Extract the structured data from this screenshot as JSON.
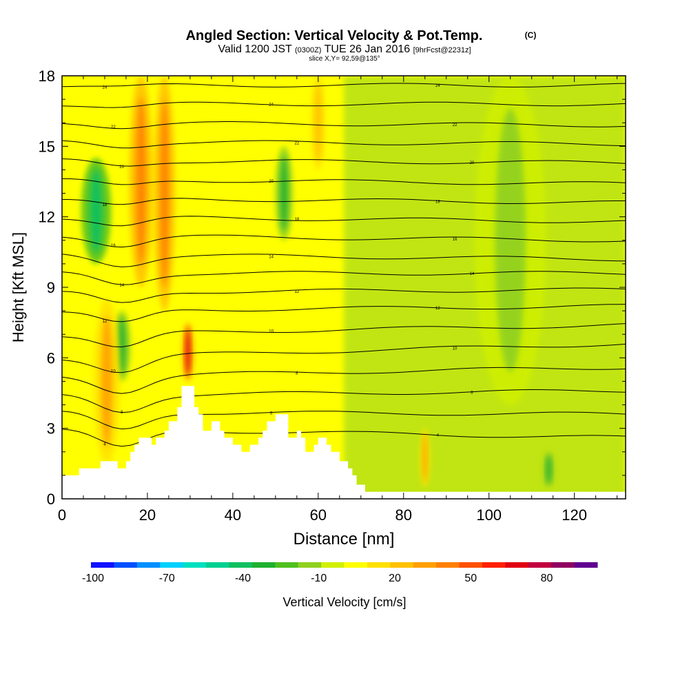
{
  "title": "Angled Section: Vertical Velocity & Pot.Temp.",
  "title_suffix": "(C)",
  "subtitle_left": "Valid 1200 JST",
  "subtitle_utc": "(0300Z)",
  "subtitle_right": "TUE 26 Jan 2016",
  "subtitle_fcst": "[9hrFcst@2231z]",
  "subtitle2": "slice X,Y= 92,59@135°",
  "chart_data": {
    "type": "heatmap",
    "xlabel": "Distance [nm]",
    "ylabel": "Height [Kft MSL]",
    "xlim": [
      0,
      132
    ],
    "ylim": [
      0,
      18
    ],
    "x_ticks": [
      "0",
      "20",
      "40",
      "60",
      "80",
      "100",
      "120"
    ],
    "y_ticks": [
      "0",
      "3",
      "6",
      "9",
      "12",
      "15",
      "18"
    ],
    "colorbar": {
      "label": "Vertical Velocity [cm/s]",
      "tick_labels": [
        "-100",
        "-70",
        "-40",
        "-10",
        "20",
        "50",
        "80"
      ],
      "range": [
        -100,
        100
      ],
      "colors": [
        "#1010ff",
        "#0050ff",
        "#0090ff",
        "#00d0ff",
        "#00e0c0",
        "#00d090",
        "#10c060",
        "#20b030",
        "#50c020",
        "#90d020",
        "#d0f000",
        "#ffff00",
        "#ffe000",
        "#ffc000",
        "#ffa000",
        "#ff8000",
        "#ff5000",
        "#ff2000",
        "#e00010",
        "#c00040",
        "#900060",
        "#600090"
      ]
    },
    "terrain": [
      [
        0,
        1.0
      ],
      [
        4,
        1.0
      ],
      [
        4,
        1.3
      ],
      [
        9,
        1.3
      ],
      [
        9,
        1.6
      ],
      [
        13,
        1.6
      ],
      [
        13,
        1.3
      ],
      [
        15,
        1.3
      ],
      [
        15,
        1.6
      ],
      [
        16,
        1.6
      ],
      [
        16,
        2.0
      ],
      [
        17,
        2.0
      ],
      [
        17,
        2.3
      ],
      [
        18,
        2.3
      ],
      [
        18,
        2.6
      ],
      [
        21,
        2.6
      ],
      [
        21,
        2.3
      ],
      [
        22,
        2.3
      ],
      [
        22,
        2.6
      ],
      [
        24,
        2.6
      ],
      [
        24,
        2.9
      ],
      [
        25,
        2.9
      ],
      [
        25,
        3.3
      ],
      [
        27,
        3.3
      ],
      [
        27,
        3.9
      ],
      [
        28,
        3.9
      ],
      [
        28,
        4.8
      ],
      [
        31,
        4.8
      ],
      [
        31,
        3.9
      ],
      [
        32,
        3.9
      ],
      [
        32,
        3.6
      ],
      [
        33,
        3.6
      ],
      [
        33,
        2.9
      ],
      [
        35,
        2.9
      ],
      [
        35,
        3.3
      ],
      [
        37,
        3.3
      ],
      [
        37,
        2.9
      ],
      [
        38,
        2.9
      ],
      [
        38,
        2.6
      ],
      [
        40,
        2.6
      ],
      [
        40,
        2.3
      ],
      [
        42,
        2.3
      ],
      [
        42,
        2.0
      ],
      [
        44,
        2.0
      ],
      [
        44,
        2.3
      ],
      [
        46,
        2.3
      ],
      [
        46,
        2.6
      ],
      [
        47,
        2.6
      ],
      [
        47,
        2.9
      ],
      [
        48,
        2.9
      ],
      [
        48,
        3.3
      ],
      [
        50,
        3.3
      ],
      [
        50,
        3.6
      ],
      [
        53,
        3.6
      ],
      [
        53,
        2.6
      ],
      [
        55,
        2.6
      ],
      [
        55,
        2.9
      ],
      [
        56,
        2.9
      ],
      [
        56,
        2.6
      ],
      [
        57,
        2.6
      ],
      [
        57,
        2.0
      ],
      [
        59,
        2.0
      ],
      [
        59,
        2.3
      ],
      [
        60,
        2.3
      ],
      [
        60,
        2.6
      ],
      [
        62,
        2.6
      ],
      [
        62,
        2.3
      ],
      [
        63,
        2.3
      ],
      [
        63,
        2.0
      ],
      [
        65,
        2.0
      ],
      [
        65,
        1.6
      ],
      [
        67,
        1.6
      ],
      [
        67,
        1.3
      ],
      [
        68,
        1.3
      ],
      [
        68,
        1.0
      ],
      [
        69,
        1.0
      ],
      [
        69,
        0.6
      ],
      [
        71,
        0.6
      ],
      [
        71,
        0.3
      ],
      [
        132,
        0.3
      ]
    ],
    "updraft_bands": [
      {
        "x": 10.5,
        "y0": 1.5,
        "y1": 8.5,
        "w": 2.2,
        "w_cm_s": 30
      },
      {
        "x": 18.5,
        "y0": 9.0,
        "y1": 18.0,
        "w": 2.0,
        "w_cm_s": 40
      },
      {
        "x": 24.0,
        "y0": 8.0,
        "y1": 18.0,
        "w": 1.8,
        "w_cm_s": 40
      },
      {
        "x": 29.5,
        "y0": 5.0,
        "y1": 7.5,
        "w": 1.0,
        "w_cm_s": 70
      },
      {
        "x": 60.0,
        "y0": 14.0,
        "y1": 18.0,
        "w": 1.2,
        "w_cm_s": 25
      },
      {
        "x": 85.0,
        "y0": 0.5,
        "y1": 3.0,
        "w": 0.8,
        "w_cm_s": 30
      }
    ],
    "downdraft_bands": [
      {
        "x": 8.0,
        "y0": 10.0,
        "y1": 14.5,
        "w": 2.5,
        "w_cm_s": -40
      },
      {
        "x": 14.0,
        "y0": 5.0,
        "y1": 8.0,
        "w": 1.5,
        "w_cm_s": -30
      },
      {
        "x": 52.0,
        "y0": 11.0,
        "y1": 15.0,
        "w": 1.5,
        "w_cm_s": -30
      },
      {
        "x": 105.0,
        "y0": 4.0,
        "y1": 18.0,
        "w": 6.0,
        "w_cm_s": -10
      },
      {
        "x": 114.0,
        "y0": 0.5,
        "y1": 2.0,
        "w": 1.0,
        "w_cm_s": -30
      }
    ],
    "isentropes": [
      {
        "label": "4",
        "h_left": 3.0,
        "h_right": 2.6
      },
      {
        "label": "6",
        "h_left": 3.7,
        "h_right": 3.6
      },
      {
        "label": "8",
        "h_left": 4.4,
        "h_right": 4.6
      },
      {
        "label": "8",
        "h_left": 5.2,
        "h_right": 5.6
      },
      {
        "label": "10",
        "h_left": 6.0,
        "h_right": 6.6
      },
      {
        "label": "10",
        "h_left": 7.0,
        "h_right": 7.4
      },
      {
        "label": "12",
        "h_left": 8.0,
        "h_right": 8.2
      },
      {
        "label": "12",
        "h_left": 8.8,
        "h_right": 8.9
      },
      {
        "label": "14",
        "h_left": 9.6,
        "h_right": 9.6
      },
      {
        "label": "14",
        "h_left": 10.4,
        "h_right": 10.2
      },
      {
        "label": "16",
        "h_left": 11.2,
        "h_right": 11.0
      },
      {
        "label": "18",
        "h_left": 12.0,
        "h_right": 11.8
      },
      {
        "label": "18",
        "h_left": 12.8,
        "h_right": 12.6
      },
      {
        "label": "20",
        "h_left": 13.6,
        "h_right": 13.4
      },
      {
        "label": "20",
        "h_left": 14.4,
        "h_right": 14.3
      },
      {
        "label": "22",
        "h_left": 15.2,
        "h_right": 15.1
      },
      {
        "label": "22",
        "h_left": 16.0,
        "h_right": 15.9
      },
      {
        "label": "24",
        "h_left": 16.8,
        "h_right": 16.8
      },
      {
        "label": "24",
        "h_left": 17.6,
        "h_right": 17.6
      }
    ]
  }
}
